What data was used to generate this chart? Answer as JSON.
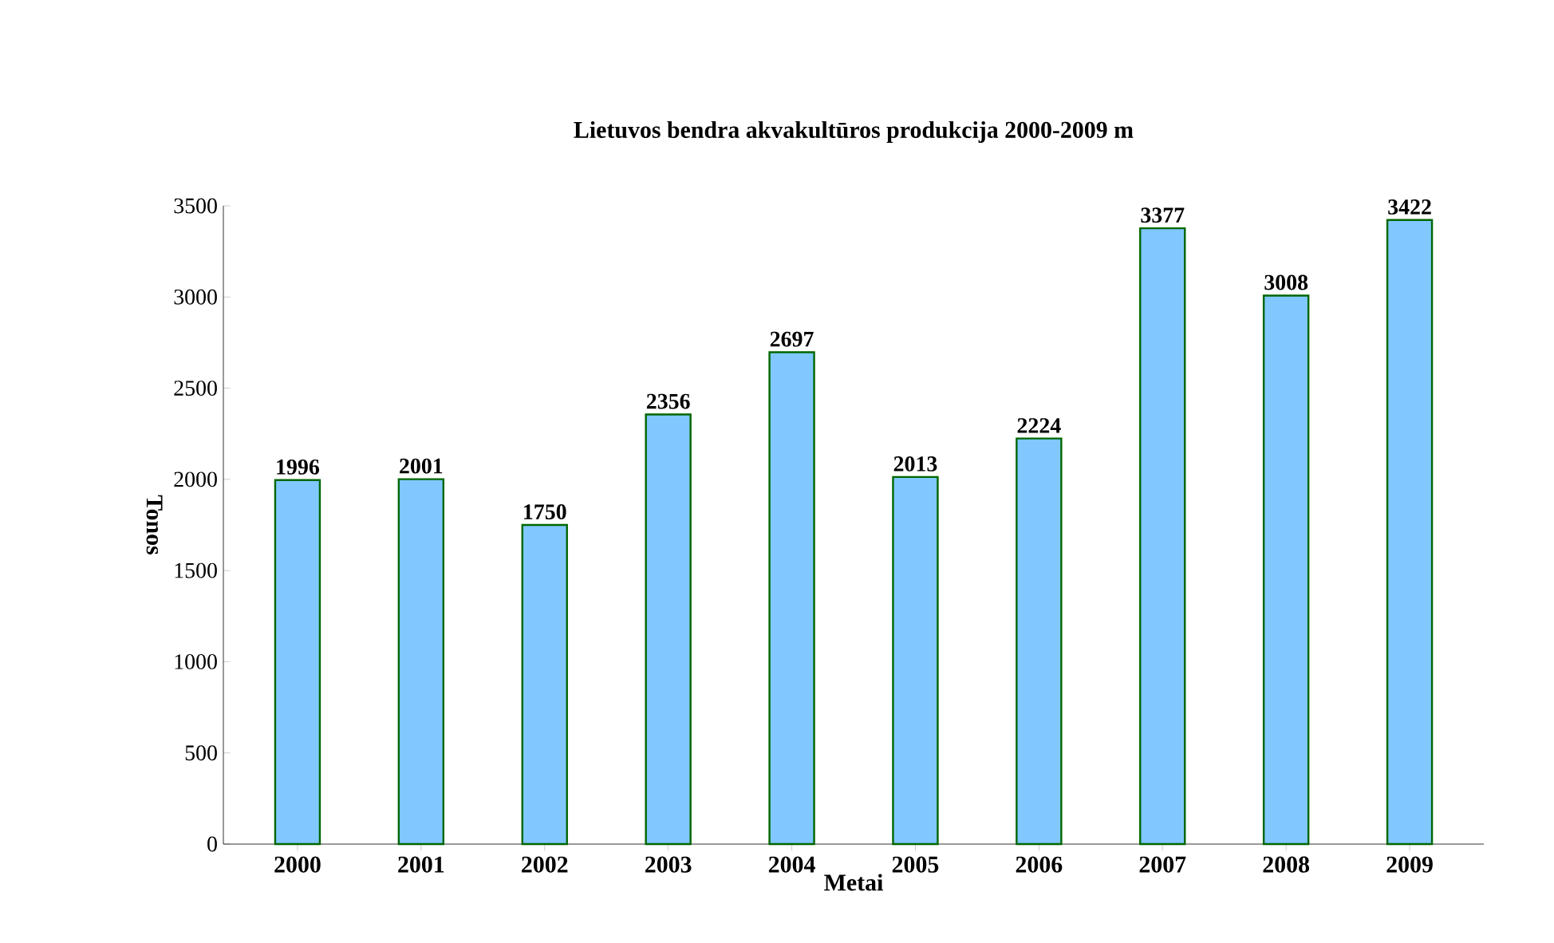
{
  "chart_data": {
    "type": "bar",
    "title": "Lietuvos bendra akvakultūros produkcija 2000-2009 m",
    "xlabel": "Metai",
    "ylabel": "Tonos",
    "categories": [
      "2000",
      "2001",
      "2002",
      "2003",
      "2004",
      "2005",
      "2006",
      "2007",
      "2008",
      "2009"
    ],
    "values": [
      1996,
      2001,
      1750,
      2356,
      2697,
      2013,
      2224,
      3377,
      3008,
      3422
    ],
    "color": "#80c8ff",
    "ylim": [
      0,
      3500
    ],
    "yticks": [
      0,
      500,
      1000,
      1500,
      2000,
      2500,
      3000,
      3500
    ],
    "grid": false,
    "data_labels": true
  }
}
